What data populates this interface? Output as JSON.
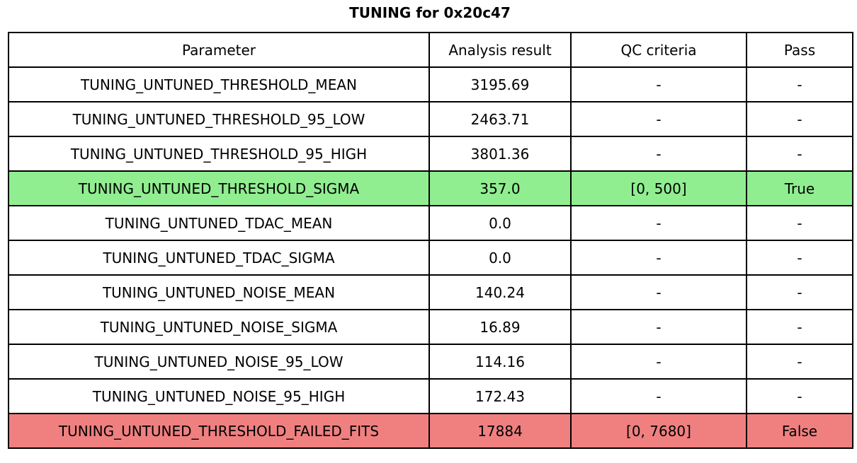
{
  "chart_data": {
    "type": "table",
    "title": "TUNING for 0x20c47",
    "columns": [
      "Parameter",
      "Analysis result",
      "QC criteria",
      "Pass"
    ],
    "rows": [
      {
        "param": "TUNING_UNTUNED_THRESHOLD_MEAN",
        "result": "3195.69",
        "qc": "-",
        "pass": "-",
        "status": "none"
      },
      {
        "param": "TUNING_UNTUNED_THRESHOLD_95_LOW",
        "result": "2463.71",
        "qc": "-",
        "pass": "-",
        "status": "none"
      },
      {
        "param": "TUNING_UNTUNED_THRESHOLD_95_HIGH",
        "result": "3801.36",
        "qc": "-",
        "pass": "-",
        "status": "none"
      },
      {
        "param": "TUNING_UNTUNED_THRESHOLD_SIGMA",
        "result": "357.0",
        "qc": "[0, 500]",
        "pass": "True",
        "status": "pass"
      },
      {
        "param": "TUNING_UNTUNED_TDAC_MEAN",
        "result": "0.0",
        "qc": "-",
        "pass": "-",
        "status": "none"
      },
      {
        "param": "TUNING_UNTUNED_TDAC_SIGMA",
        "result": "0.0",
        "qc": "-",
        "pass": "-",
        "status": "none"
      },
      {
        "param": "TUNING_UNTUNED_NOISE_MEAN",
        "result": "140.24",
        "qc": "-",
        "pass": "-",
        "status": "none"
      },
      {
        "param": "TUNING_UNTUNED_NOISE_SIGMA",
        "result": "16.89",
        "qc": "-",
        "pass": "-",
        "status": "none"
      },
      {
        "param": "TUNING_UNTUNED_NOISE_95_LOW",
        "result": "114.16",
        "qc": "-",
        "pass": "-",
        "status": "none"
      },
      {
        "param": "TUNING_UNTUNED_NOISE_95_HIGH",
        "result": "172.43",
        "qc": "-",
        "pass": "-",
        "status": "none"
      },
      {
        "param": "TUNING_UNTUNED_THRESHOLD_FAILED_FITS",
        "result": "17884",
        "qc": "[0, 7680]",
        "pass": "False",
        "status": "fail"
      }
    ],
    "layout": {
      "grid": "on",
      "title_position": "top-center"
    }
  },
  "colors": {
    "pass_row_bg": "#90EE90",
    "fail_row_bg": "#F08080",
    "border": "#000000",
    "text": "#000000",
    "background": "#FFFFFF"
  }
}
